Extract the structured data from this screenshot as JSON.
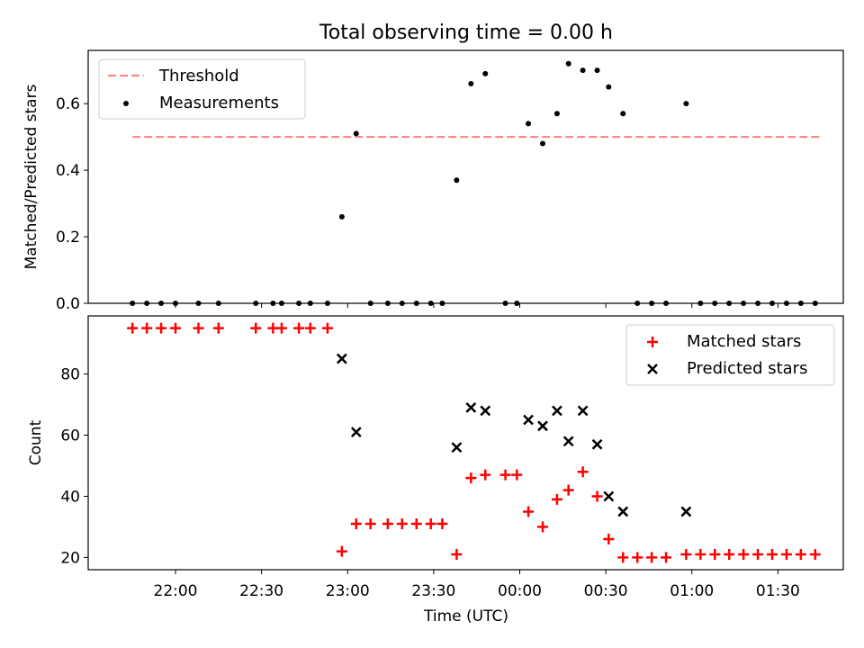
{
  "title": "Total observing time = 0.00 h",
  "chart_data": [
    {
      "type": "scatter",
      "ylabel": "Matched/Predicted stars",
      "xlabel": "",
      "ylim": [
        0.0,
        0.76
      ],
      "yticks": [
        "0.0",
        "0.2",
        "0.4",
        "0.6"
      ],
      "legend_position": "top-left",
      "threshold": {
        "name": "Threshold",
        "value": 0.5,
        "x_range": [
          "21:45",
          "01:45"
        ],
        "color": "#ff7f7f"
      },
      "series": [
        {
          "name": "Measurements",
          "color": "#000000",
          "x": [
            "21:45",
            "21:50",
            "21:55",
            "22:00",
            "22:08",
            "22:15",
            "22:28",
            "22:34",
            "22:37",
            "22:43",
            "22:47",
            "22:53",
            "22:58",
            "23:03",
            "23:08",
            "23:14",
            "23:19",
            "23:24",
            "23:29",
            "23:33",
            "23:38",
            "23:43",
            "23:48",
            "23:55",
            "23:59",
            "00:03",
            "00:08",
            "00:13",
            "00:17",
            "00:22",
            "00:27",
            "00:31",
            "00:36",
            "00:41",
            "00:46",
            "00:51",
            "00:58",
            "01:03",
            "01:08",
            "01:13",
            "01:18",
            "01:23",
            "01:28",
            "01:33",
            "01:38",
            "01:43"
          ],
          "y": [
            0,
            0,
            0,
            0,
            0,
            0,
            0,
            0,
            0,
            0,
            0,
            0,
            0.26,
            0.51,
            0,
            0,
            0,
            0,
            0,
            0,
            0.37,
            0.66,
            0.69,
            0,
            0,
            0.54,
            0.48,
            0.57,
            0.72,
            0.7,
            0.7,
            0.65,
            0.57,
            0,
            0,
            0,
            0.6,
            0,
            0,
            0,
            0,
            0,
            0,
            0,
            0,
            0
          ]
        }
      ]
    },
    {
      "type": "scatter",
      "xlabel": "Time (UTC)",
      "ylabel": "Count",
      "ylim": [
        16,
        99
      ],
      "yticks": [
        "20",
        "40",
        "60",
        "80"
      ],
      "xticks": [
        "22:00",
        "22:30",
        "23:00",
        "23:30",
        "00:00",
        "00:30",
        "01:00",
        "01:30"
      ],
      "legend_position": "top-right",
      "series": [
        {
          "name": "Matched stars",
          "marker": "plus",
          "color": "#ff0000",
          "x": [
            "21:45",
            "21:50",
            "21:55",
            "22:00",
            "22:08",
            "22:15",
            "22:28",
            "22:34",
            "22:37",
            "22:43",
            "22:47",
            "22:53",
            "22:58",
            "23:03",
            "23:08",
            "23:14",
            "23:19",
            "23:24",
            "23:29",
            "23:33",
            "23:38",
            "23:43",
            "23:48",
            "23:55",
            "23:59",
            "00:03",
            "00:08",
            "00:13",
            "00:17",
            "00:22",
            "00:27",
            "00:31",
            "00:36",
            "00:41",
            "00:46",
            "00:51",
            "00:58",
            "01:03",
            "01:08",
            "01:13",
            "01:18",
            "01:23",
            "01:28",
            "01:33",
            "01:38",
            "01:43"
          ],
          "y": [
            95,
            95,
            95,
            95,
            95,
            95,
            95,
            95,
            95,
            95,
            95,
            95,
            22,
            31,
            31,
            31,
            31,
            31,
            31,
            31,
            21,
            46,
            47,
            47,
            47,
            35,
            30,
            39,
            42,
            48,
            40,
            26,
            20,
            20,
            20,
            20,
            21,
            21,
            21,
            21,
            21,
            21,
            21,
            21,
            21,
            21
          ]
        },
        {
          "name": "Predicted stars",
          "marker": "x",
          "color": "#000000",
          "x": [
            "22:58",
            "23:03",
            "23:38",
            "23:43",
            "23:48",
            "00:03",
            "00:08",
            "00:13",
            "00:17",
            "00:22",
            "00:27",
            "00:31",
            "00:36",
            "00:58"
          ],
          "y": [
            85,
            61,
            56,
            69,
            68,
            65,
            63,
            68,
            58,
            68,
            57,
            40,
            35,
            35
          ]
        }
      ]
    }
  ]
}
